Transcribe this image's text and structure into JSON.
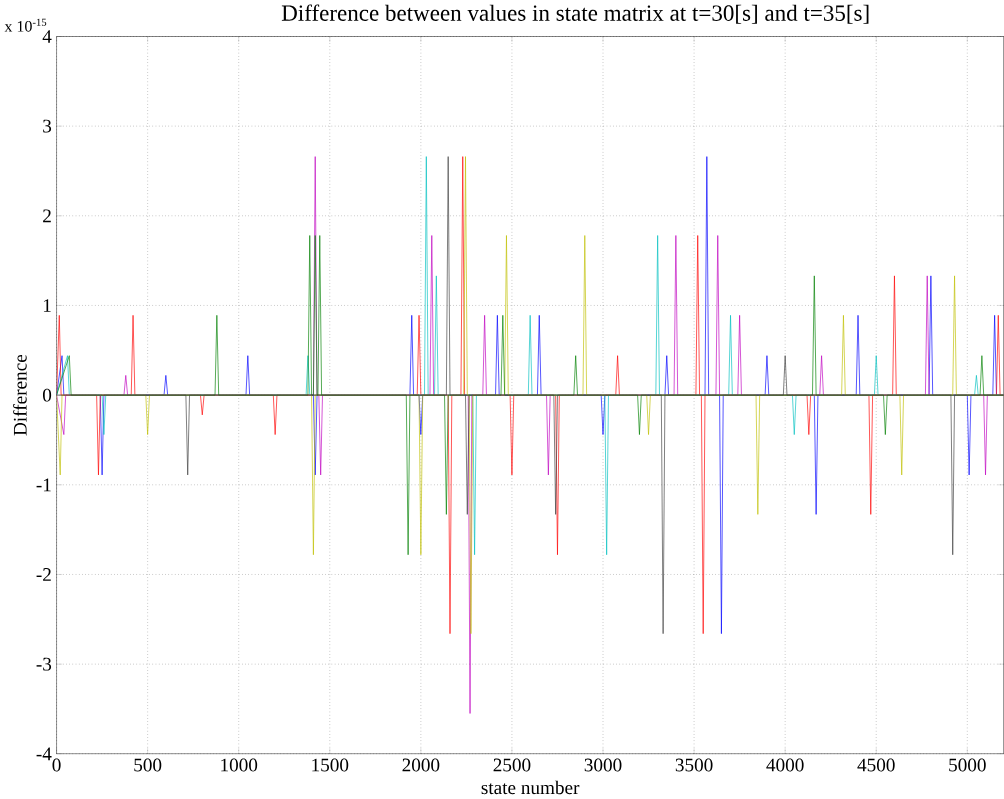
{
  "chart_data": {
    "type": "line",
    "title": "Difference between values in state matrix at t=30[s] and t=35[s]",
    "xlabel": "state number",
    "ylabel": "Difference",
    "annotations": [
      "x 10$^{-15}$"
    ],
    "xlim": [
      0,
      5200
    ],
    "ylim": [
      -4,
      4
    ],
    "xticks": [
      0,
      500,
      1000,
      1500,
      2000,
      2500,
      3000,
      3500,
      4000,
      4500,
      5000
    ],
    "yticks": [
      -4,
      -3,
      -2,
      -1,
      0,
      1,
      2,
      3,
      4
    ],
    "grid": true,
    "marker": "none",
    "line_style": "solid",
    "series": [
      {
        "color": "#0000ff",
        "x": [
          0,
          30,
          40,
          240,
          250,
          260,
          590,
          600,
          610,
          1040,
          1050,
          1060,
          1410,
          1420,
          1430,
          1940,
          1950,
          1960,
          1990,
          2000,
          2010,
          2410,
          2420,
          2430,
          2640,
          2650,
          2660,
          2990,
          3000,
          3010,
          3340,
          3350,
          3360,
          3560,
          3570,
          3580,
          3640,
          3650,
          3660,
          3890,
          3900,
          3910,
          4160,
          4170,
          4180,
          4390,
          4400,
          4410,
          4790,
          4800,
          4810,
          5000,
          5010,
          5020,
          5140,
          5150,
          5160,
          5200
        ],
        "values": [
          0,
          0.44,
          0,
          0,
          -0.89,
          0,
          0,
          0.22,
          0,
          0,
          0.44,
          0,
          0,
          -0.89,
          0,
          0,
          0.89,
          0,
          0,
          -0.44,
          0,
          0,
          0.89,
          0,
          0,
          0.89,
          0,
          0,
          -0.44,
          0,
          0,
          0.44,
          0,
          0,
          2.66,
          0,
          0,
          -2.66,
          0,
          0,
          0.44,
          0,
          0,
          -1.33,
          0,
          0,
          0.89,
          0,
          0,
          1.33,
          0,
          0,
          -0.89,
          0,
          0,
          0.89,
          0,
          0
        ]
      },
      {
        "color": "#ff0000",
        "x": [
          0,
          15,
          25,
          220,
          230,
          240,
          410,
          420,
          430,
          790,
          800,
          810,
          1190,
          1200,
          1210,
          1980,
          1990,
          2000,
          2150,
          2160,
          2170,
          2220,
          2230,
          2240,
          2490,
          2500,
          2510,
          2740,
          2750,
          2760,
          3070,
          3080,
          3090,
          3510,
          3520,
          3530,
          3540,
          3550,
          3560,
          4120,
          4130,
          4140,
          4460,
          4470,
          4480,
          4590,
          4600,
          4610,
          5160,
          5170,
          5180,
          5200
        ],
        "values": [
          0,
          0.89,
          0,
          0,
          -0.89,
          0,
          0,
          0.89,
          0,
          0,
          -0.22,
          0,
          0,
          -0.44,
          0,
          0,
          0.89,
          0,
          0,
          -2.66,
          0,
          0,
          2.66,
          0,
          0,
          -0.89,
          0,
          0,
          -1.78,
          0,
          0,
          0.44,
          0,
          0,
          1.78,
          0,
          0,
          -2.66,
          0,
          0,
          -0.44,
          0,
          0,
          -1.33,
          0,
          0,
          1.33,
          0,
          0,
          0.89,
          0,
          0
        ]
      },
      {
        "color": "#00bfbf",
        "x": [
          0,
          60,
          70,
          250,
          260,
          270,
          1370,
          1380,
          1390,
          2020,
          2030,
          2040,
          2075,
          2085,
          2095,
          2285,
          2295,
          2305,
          2590,
          2600,
          2610,
          3010,
          3020,
          3030,
          3290,
          3300,
          3310,
          3690,
          3700,
          3710,
          4040,
          4050,
          4060,
          4490,
          4500,
          4510,
          5040,
          5050,
          5060,
          5200
        ],
        "values": [
          0,
          0.44,
          0,
          0,
          -0.44,
          0,
          0,
          0.44,
          0,
          0,
          2.66,
          0,
          0,
          1.33,
          0,
          0,
          -1.78,
          0,
          0,
          0.89,
          0,
          0,
          -1.78,
          0,
          0,
          1.78,
          0,
          0,
          0.89,
          0,
          0,
          -0.44,
          0,
          0,
          0.44,
          0,
          0,
          0.22,
          0,
          0
        ]
      },
      {
        "color": "#bf00bf",
        "x": [
          0,
          40,
          50,
          370,
          380,
          390,
          1410,
          1420,
          1430,
          1440,
          1450,
          1460,
          2050,
          2060,
          2070,
          2260,
          2270,
          2280,
          2340,
          2350,
          2360,
          2690,
          2700,
          2710,
          3390,
          3400,
          3410,
          3620,
          3630,
          3640,
          3740,
          3750,
          3760,
          4190,
          4200,
          4210,
          4770,
          4780,
          4790,
          5090,
          5100,
          5110,
          5200
        ],
        "values": [
          0,
          -0.44,
          0,
          0,
          0.22,
          0,
          0,
          2.66,
          0,
          0,
          -0.89,
          0,
          0,
          1.78,
          0,
          0,
          -3.55,
          0,
          0,
          0.89,
          0,
          0,
          -0.89,
          0,
          0,
          1.78,
          0,
          0,
          1.78,
          0,
          0,
          0.89,
          0,
          0,
          0.44,
          0,
          0,
          1.33,
          0,
          0,
          -0.89,
          0,
          0
        ]
      },
      {
        "color": "#bfbf00",
        "x": [
          0,
          20,
          30,
          490,
          500,
          510,
          1400,
          1410,
          1420,
          1990,
          2000,
          2010,
          2235,
          2245,
          2255,
          2265,
          2275,
          2285,
          2460,
          2470,
          2480,
          2890,
          2900,
          2910,
          3240,
          3250,
          3260,
          3840,
          3850,
          3860,
          4310,
          4320,
          4330,
          4630,
          4640,
          4650,
          4920,
          4930,
          4940,
          5200
        ],
        "values": [
          0,
          -0.89,
          0,
          0,
          -0.44,
          0,
          0,
          -1.78,
          0,
          0,
          -1.78,
          0,
          0,
          2.66,
          0,
          0,
          -2.66,
          0,
          0,
          1.78,
          0,
          0,
          1.78,
          0,
          0,
          -0.44,
          0,
          0,
          -1.33,
          0,
          0,
          0.89,
          0,
          0,
          -0.89,
          0,
          0,
          1.33,
          0,
          0
        ]
      },
      {
        "color": "#008000",
        "x": [
          0,
          70,
          80,
          870,
          880,
          890,
          1380,
          1390,
          1400,
          1410,
          1420,
          1430,
          1435,
          1445,
          1455,
          1920,
          1930,
          1940,
          2130,
          2140,
          2150,
          2440,
          2450,
          2460,
          2840,
          2850,
          2860,
          3190,
          3200,
          3210,
          4150,
          4160,
          4170,
          4540,
          4550,
          4560,
          5070,
          5080,
          5090,
          5200
        ],
        "values": [
          0,
          0.44,
          0,
          0,
          0.89,
          0,
          0,
          1.78,
          0,
          0,
          1.78,
          0,
          0,
          1.78,
          0,
          0,
          -1.78,
          0,
          0,
          -1.33,
          0,
          0,
          0.89,
          0,
          0,
          0.44,
          0,
          0,
          -0.44,
          0,
          0,
          1.33,
          0,
          0,
          -0.44,
          0,
          0,
          0.44,
          0,
          0
        ]
      },
      {
        "color": "#404040",
        "x": [
          0,
          710,
          720,
          730,
          2140,
          2150,
          2160,
          2245,
          2255,
          2265,
          2730,
          2740,
          2750,
          3320,
          3330,
          3340,
          3990,
          4000,
          4010,
          4910,
          4920,
          4930,
          5200
        ],
        "values": [
          0,
          0,
          -0.89,
          0,
          0,
          2.66,
          0,
          0,
          -1.33,
          0,
          0,
          -1.33,
          0,
          0,
          -2.66,
          0,
          0,
          0.44,
          0,
          0,
          -1.78,
          0,
          0
        ]
      }
    ]
  }
}
